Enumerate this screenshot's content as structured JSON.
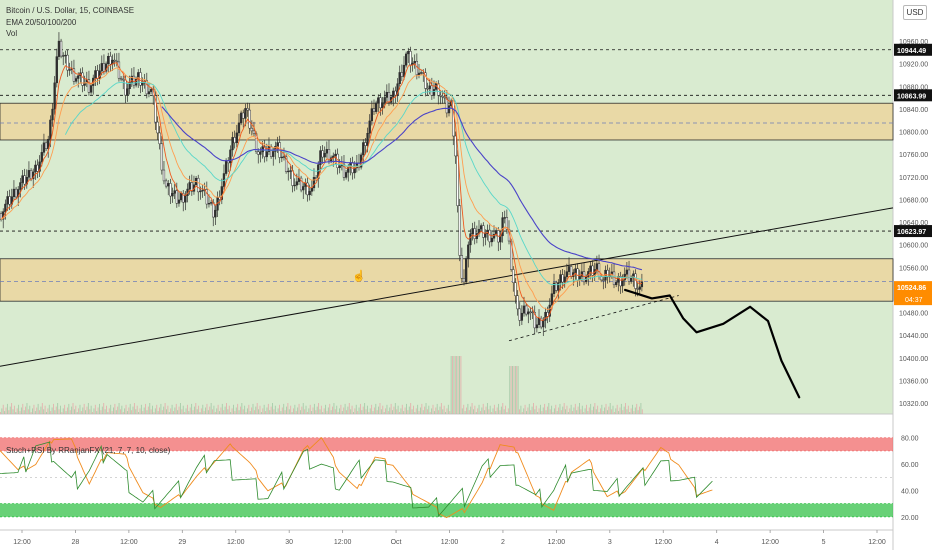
{
  "header": {
    "symbol": "Bitcoin / U.S. Dollar, 15, COINBASE",
    "ema": "EMA 20/50/100/200",
    "vol": "Vol",
    "currency": "USD"
  },
  "oscillator": {
    "title": "Stoch+RSI By RRanjanFX (21, 7, 7, 10, close)",
    "ticks": [
      "80.00",
      "60.00",
      "40.00",
      "20.00"
    ]
  },
  "colors": {
    "main_bg": "#d9ebd0",
    "zone_fill": "#e9d9a6",
    "up_candle": "#2e2e2e",
    "ema_20": "#ef5a1e",
    "ema_50": "#ff9e4f",
    "ema_100": "#59d7c9",
    "ema_200": "#4a43c8",
    "overbought": "#f06b6b",
    "oversold": "#35c24a",
    "stoch_line": "#f08c1f",
    "rsi_line": "#2e8b2e",
    "last_price_tag": "#ff8c00"
  },
  "chart_data": [
    {
      "type": "candlestick",
      "title": "Bitcoin / U.S. Dollar, 15, COINBASE",
      "xlabel": "",
      "ylabel": "",
      "ylim": [
        10300,
        10990
      ],
      "y_ticks": [
        "10960.00",
        "10920.00",
        "10880.00",
        "10840.00",
        "10800.00",
        "10760.00",
        "10720.00",
        "10680.00",
        "10640.00",
        "10600.00",
        "10560.00",
        "10520.00",
        "10480.00",
        "10440.00",
        "10400.00",
        "10360.00",
        "10320.00"
      ],
      "x_ticks": [
        "12:00",
        "28",
        "12:00",
        "29",
        "12:00",
        "30",
        "12:00",
        "Oct",
        "12:00",
        "2",
        "12:00",
        "3",
        "12:00",
        "4",
        "12:00",
        "5",
        "12:00"
      ],
      "price_path": [
        [
          0,
          10655
        ],
        [
          0.02,
          10700
        ],
        [
          0.04,
          10735
        ],
        [
          0.055,
          10790
        ],
        [
          0.065,
          10950
        ],
        [
          0.08,
          10905
        ],
        [
          0.1,
          10880
        ],
        [
          0.125,
          10935
        ],
        [
          0.14,
          10875
        ],
        [
          0.155,
          10895
        ],
        [
          0.17,
          10870
        ],
        [
          0.185,
          10700
        ],
        [
          0.2,
          10680
        ],
        [
          0.22,
          10710
        ],
        [
          0.24,
          10655
        ],
        [
          0.26,
          10780
        ],
        [
          0.275,
          10840
        ],
        [
          0.29,
          10760
        ],
        [
          0.31,
          10770
        ],
        [
          0.33,
          10710
        ],
        [
          0.35,
          10695
        ],
        [
          0.36,
          10765
        ],
        [
          0.37,
          10760
        ],
        [
          0.385,
          10730
        ],
        [
          0.4,
          10735
        ],
        [
          0.42,
          10850
        ],
        [
          0.44,
          10860
        ],
        [
          0.455,
          10935
        ],
        [
          0.47,
          10905
        ],
        [
          0.48,
          10870
        ],
        [
          0.49,
          10880
        ],
        [
          0.5,
          10840
        ],
        [
          0.505,
          10850
        ],
        [
          0.51,
          10760
        ],
        [
          0.515,
          10560
        ],
        [
          0.52,
          10530
        ],
        [
          0.525,
          10620
        ],
        [
          0.535,
          10625
        ],
        [
          0.55,
          10615
        ],
        [
          0.56,
          10610
        ],
        [
          0.565,
          10660
        ],
        [
          0.57,
          10600
        ],
        [
          0.58,
          10470
        ],
        [
          0.59,
          10490
        ],
        [
          0.6,
          10455
        ],
        [
          0.61,
          10470
        ],
        [
          0.62,
          10520
        ],
        [
          0.63,
          10545
        ],
        [
          0.64,
          10550
        ],
        [
          0.65,
          10545
        ],
        [
          0.66,
          10550
        ],
        [
          0.67,
          10560
        ],
        [
          0.675,
          10530
        ],
        [
          0.68,
          10550
        ],
        [
          0.69,
          10535
        ],
        [
          0.7,
          10545
        ],
        [
          0.71,
          10540
        ],
        [
          0.715,
          10520
        ],
        [
          0.72,
          10522
        ]
      ],
      "volume": {
        "baseline": "low",
        "spikes": [
          [
            "Oct 12:00",
            "high"
          ],
          [
            "2",
            "high"
          ]
        ]
      },
      "series": [
        {
          "name": "EMA 20",
          "values": "follows price"
        },
        {
          "name": "EMA 50",
          "values": "smoothed"
        },
        {
          "name": "EMA 100",
          "values": "smoothed"
        },
        {
          "name": "EMA 200",
          "values": [
            [
              0.18,
              10810
            ],
            [
              0.3,
              10775
            ],
            [
              0.4,
              10785
            ],
            [
              0.5,
              10780
            ],
            [
              0.55,
              10730
            ],
            [
              0.6,
              10660
            ],
            [
              0.72,
              10595
            ]
          ]
        }
      ],
      "horizontal_levels": [
        {
          "label": "10944.49",
          "style": "dashed",
          "value": 10944.49
        },
        {
          "label": "10863.99",
          "style": "dashed",
          "value": 10863.99
        },
        {
          "label": "10623.97",
          "style": "dashed",
          "value": 10623.97
        },
        {
          "label": "10524.86",
          "style": "last-price",
          "value": 10524.86
        }
      ],
      "countdown": "04:37",
      "zones": [
        {
          "from": 10785,
          "to": 10850,
          "mid": 10815
        },
        {
          "from": 10500,
          "to": 10575,
          "mid": 10535
        }
      ],
      "trendlines": [
        {
          "from": [
            0,
            10385
          ],
          "to": [
            1,
            10665
          ],
          "style": "solid"
        },
        {
          "from": [
            0.57,
            10430
          ],
          "to": [
            0.76,
            10510
          ],
          "style": "dashed"
        }
      ],
      "projection": [
        [
          0.7,
          10520
        ],
        [
          0.73,
          10505
        ],
        [
          0.75,
          10510
        ],
        [
          0.765,
          10470
        ],
        [
          0.78,
          10445
        ],
        [
          0.81,
          10460
        ],
        [
          0.84,
          10490
        ],
        [
          0.86,
          10465
        ],
        [
          0.875,
          10395
        ],
        [
          0.895,
          10330
        ]
      ]
    },
    {
      "type": "line",
      "title": "Stoch+RSI By RRanjanFX (21, 7, 7, 10, close)",
      "ylim": [
        10,
        98
      ],
      "bands": [
        {
          "name": "overbought",
          "from": 70,
          "to": 80
        },
        {
          "name": "oversold",
          "from": 20,
          "to": 30
        }
      ],
      "series": [
        {
          "name": "",
          "values": [
            [
              0,
              72
            ],
            [
              0.02,
              55
            ],
            [
              0.04,
              60
            ],
            [
              0.06,
              80
            ],
            [
              0.08,
              78
            ],
            [
              0.1,
              45
            ],
            [
              0.12,
              70
            ],
            [
              0.14,
              66
            ],
            [
              0.16,
              38
            ],
            [
              0.18,
              28
            ],
            [
              0.2,
              35
            ],
            [
              0.22,
              50
            ],
            [
              0.24,
              62
            ],
            [
              0.26,
              75
            ],
            [
              0.28,
              60
            ],
            [
              0.3,
              40
            ],
            [
              0.32,
              45
            ],
            [
              0.34,
              70
            ],
            [
              0.36,
              80
            ],
            [
              0.38,
              55
            ],
            [
              0.4,
              40
            ],
            [
              0.42,
              65
            ],
            [
              0.44,
              60
            ],
            [
              0.46,
              40
            ],
            [
              0.48,
              30
            ],
            [
              0.5,
              20
            ],
            [
              0.52,
              25
            ],
            [
              0.54,
              45
            ],
            [
              0.56,
              75
            ],
            [
              0.58,
              70
            ],
            [
              0.6,
              35
            ],
            [
              0.62,
              25
            ],
            [
              0.64,
              55
            ],
            [
              0.66,
              62
            ],
            [
              0.68,
              35
            ],
            [
              0.7,
              40
            ],
            [
              0.72,
              55
            ],
            [
              0.74,
              72
            ],
            [
              0.76,
              60
            ],
            [
              0.78,
              38
            ],
            [
              0.8,
              40
            ]
          ]
        },
        {
          "name": "",
          "values": [
            [
              0,
              60
            ],
            [
              0.02,
              50
            ],
            [
              0.04,
              75
            ],
            [
              0.06,
              68
            ],
            [
              0.08,
              45
            ],
            [
              0.1,
              55
            ],
            [
              0.12,
              72
            ],
            [
              0.14,
              50
            ],
            [
              0.16,
              30
            ],
            [
              0.18,
              35
            ],
            [
              0.2,
              40
            ],
            [
              0.22,
              55
            ],
            [
              0.24,
              65
            ],
            [
              0.26,
              55
            ],
            [
              0.28,
              45
            ],
            [
              0.3,
              35
            ],
            [
              0.32,
              50
            ],
            [
              0.34,
              65
            ],
            [
              0.36,
              60
            ],
            [
              0.38,
              45
            ],
            [
              0.4,
              55
            ],
            [
              0.42,
              62
            ],
            [
              0.44,
              50
            ],
            [
              0.46,
              35
            ],
            [
              0.48,
              25
            ],
            [
              0.5,
              30
            ],
            [
              0.52,
              35
            ],
            [
              0.54,
              55
            ],
            [
              0.56,
              60
            ],
            [
              0.58,
              50
            ],
            [
              0.6,
              32
            ],
            [
              0.62,
              40
            ],
            [
              0.64,
              58
            ],
            [
              0.66,
              50
            ],
            [
              0.68,
              38
            ],
            [
              0.7,
              45
            ],
            [
              0.72,
              50
            ],
            [
              0.74,
              60
            ],
            [
              0.76,
              50
            ],
            [
              0.78,
              42
            ],
            [
              0.8,
              45
            ]
          ]
        }
      ]
    }
  ]
}
